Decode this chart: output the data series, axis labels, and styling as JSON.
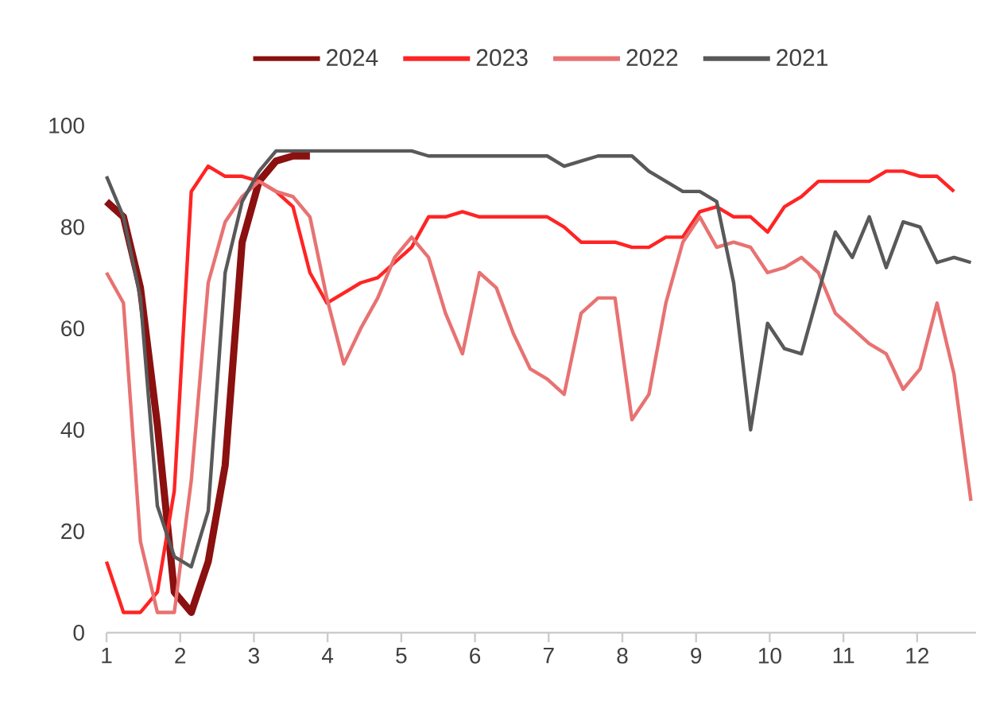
{
  "chart_data": {
    "type": "line",
    "x": [
      1,
      1.23,
      1.46,
      1.69,
      1.92,
      2.15,
      2.38,
      2.61,
      2.84,
      3.07,
      3.3,
      3.53,
      3.76,
      3.99,
      4.22,
      4.45,
      4.68,
      4.91,
      5.14,
      5.37,
      5.6,
      5.83,
      6.06,
      6.29,
      6.52,
      6.75,
      6.98,
      7.21,
      7.44,
      7.67,
      7.9,
      8.13,
      8.36,
      8.59,
      8.82,
      9.05,
      9.28,
      9.51,
      9.74,
      9.97,
      10.2,
      10.43,
      10.66,
      10.89,
      11.12,
      11.35,
      11.58,
      11.81,
      12.04,
      12.27,
      12.5,
      12.73
    ],
    "series": [
      {
        "name": "2024",
        "color": "#8b1010",
        "values": [
          85,
          82,
          68,
          41,
          8,
          4,
          14,
          33,
          77,
          89,
          93,
          94,
          94,
          null,
          null,
          null,
          null,
          null,
          null,
          null,
          null,
          null,
          null,
          null,
          null,
          null,
          null,
          null,
          null,
          null,
          null,
          null,
          null,
          null,
          null,
          null,
          null,
          null,
          null,
          null,
          null,
          null,
          null,
          null,
          null,
          null,
          null,
          null,
          null,
          null,
          null,
          null
        ]
      },
      {
        "name": "2023",
        "color": "#ff2424",
        "values": [
          14,
          4,
          4,
          8,
          28,
          87,
          92,
          90,
          90,
          89,
          87,
          84,
          71,
          65,
          67,
          69,
          70,
          73,
          76,
          82,
          82,
          83,
          82,
          82,
          82,
          82,
          82,
          80,
          77,
          77,
          77,
          76,
          76,
          78,
          78,
          83,
          84,
          82,
          82,
          79,
          84,
          86,
          89,
          89,
          89,
          89,
          91,
          91,
          90,
          90,
          87,
          null
        ]
      },
      {
        "name": "2022",
        "color": "#e87272",
        "values": [
          71,
          65,
          18,
          4,
          4,
          30,
          69,
          81,
          86,
          89,
          87,
          86,
          82,
          66,
          53,
          60,
          66,
          74,
          78,
          74,
          63,
          55,
          71,
          68,
          59,
          52,
          50,
          47,
          63,
          66,
          66,
          42,
          47,
          65,
          77,
          82,
          76,
          77,
          76,
          71,
          72,
          74,
          71,
          63,
          60,
          57,
          55,
          48,
          52,
          65,
          51,
          26
        ]
      },
      {
        "name": "2021",
        "color": "#595959",
        "values": [
          90,
          82,
          66,
          25,
          15,
          13,
          24,
          71,
          85,
          91,
          95,
          95,
          95,
          95,
          95,
          95,
          95,
          95,
          95,
          94,
          94,
          94,
          94,
          94,
          94,
          94,
          94,
          92,
          93,
          94,
          94,
          94,
          91,
          89,
          87,
          87,
          85,
          69,
          40,
          61,
          56,
          55,
          67,
          79,
          74,
          82,
          72,
          81,
          80,
          73,
          74,
          73
        ]
      }
    ],
    "xlim": [
      1,
      12.8
    ],
    "ylim": [
      0,
      100
    ],
    "xticks": [
      1,
      2,
      3,
      4,
      5,
      6,
      7,
      8,
      9,
      10,
      11,
      12
    ],
    "yticks": [
      0,
      20,
      40,
      60,
      80,
      100
    ],
    "legend": "top",
    "grid": false,
    "marker": "none",
    "line_style": "solid"
  }
}
